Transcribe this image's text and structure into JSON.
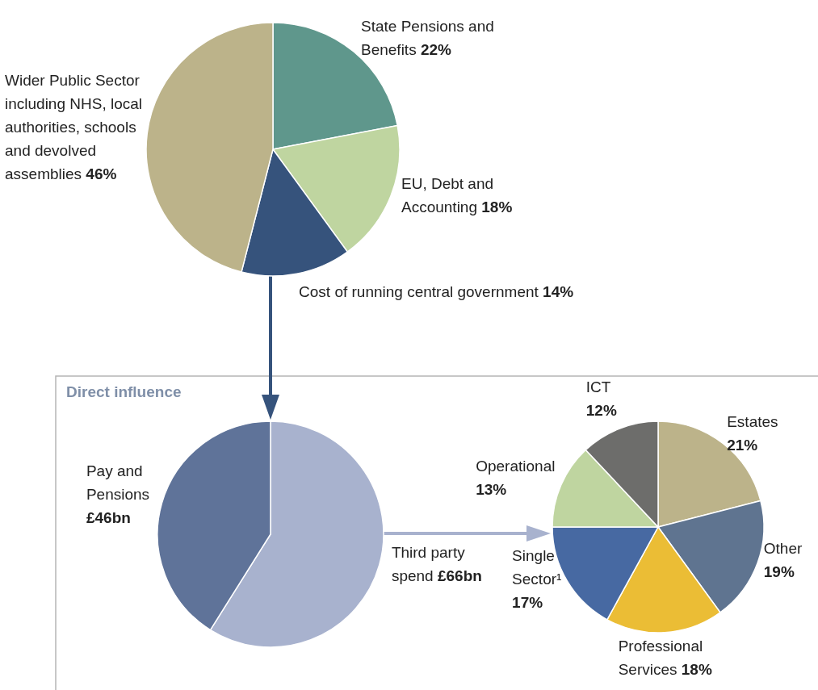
{
  "chart_data": [
    {
      "type": "pie",
      "categories": [
        "State Pensions and Benefits",
        "EU, Debt and Accounting",
        "Cost of running central government",
        "Wider Public Sector including NHS, local authorities, schools and devolved assemblies"
      ],
      "values": [
        22,
        18,
        14,
        46
      ],
      "value_labels": [
        "22%",
        "18%",
        "14%",
        "46%"
      ],
      "colors": [
        "#5f978c",
        "#bfd5a0",
        "#36537c",
        "#bcb38a"
      ]
    },
    {
      "type": "pie",
      "title": "Direct influence",
      "categories": [
        "Third party spend",
        "Pay and Pensions"
      ],
      "values": [
        66,
        46
      ],
      "value_labels": [
        "£66bn",
        "£46bn"
      ],
      "colors": [
        "#a8b2ce",
        "#5f7399"
      ]
    },
    {
      "type": "pie",
      "categories": [
        "Estates",
        "Other",
        "Professional Services",
        "Single Sector¹",
        "Operational",
        "ICT"
      ],
      "values": [
        21,
        19,
        18,
        17,
        13,
        12
      ],
      "value_labels": [
        "21%",
        "19%",
        "18%",
        "17%",
        "13%",
        "12%"
      ],
      "colors": [
        "#bcb38a",
        "#5f7490",
        "#ebbd35",
        "#4769a2",
        "#bfd5a0",
        "#6d6d6b"
      ]
    }
  ]
}
